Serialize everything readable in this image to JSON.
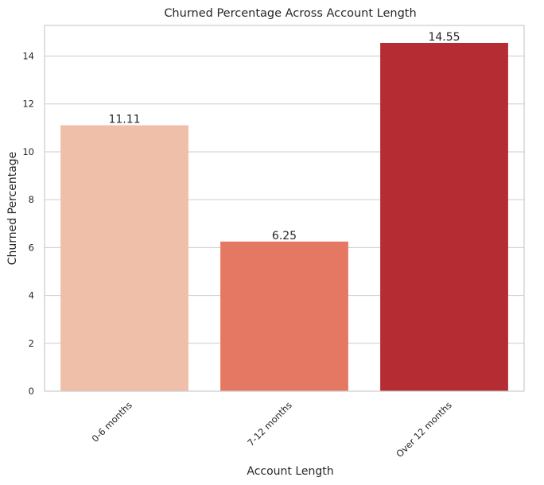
{
  "chart_data": {
    "type": "bar",
    "title": "Churned Percentage Across Account Length",
    "xlabel": "Account Length",
    "ylabel": "Churned Percentage",
    "categories": [
      "0-6 months",
      "7-12 months",
      "Over 12 months"
    ],
    "values": [
      11.11,
      6.25,
      14.55
    ],
    "data_labels": [
      "11.11",
      "6.25",
      "14.55"
    ],
    "colors": [
      "#f0bfaa",
      "#e57862",
      "#b52c32"
    ],
    "ylim": [
      0,
      15.28
    ],
    "yticks": [
      0,
      2,
      4,
      6,
      8,
      10,
      12,
      14
    ],
    "grid": "horizontal",
    "x_tick_rotation": 45
  }
}
